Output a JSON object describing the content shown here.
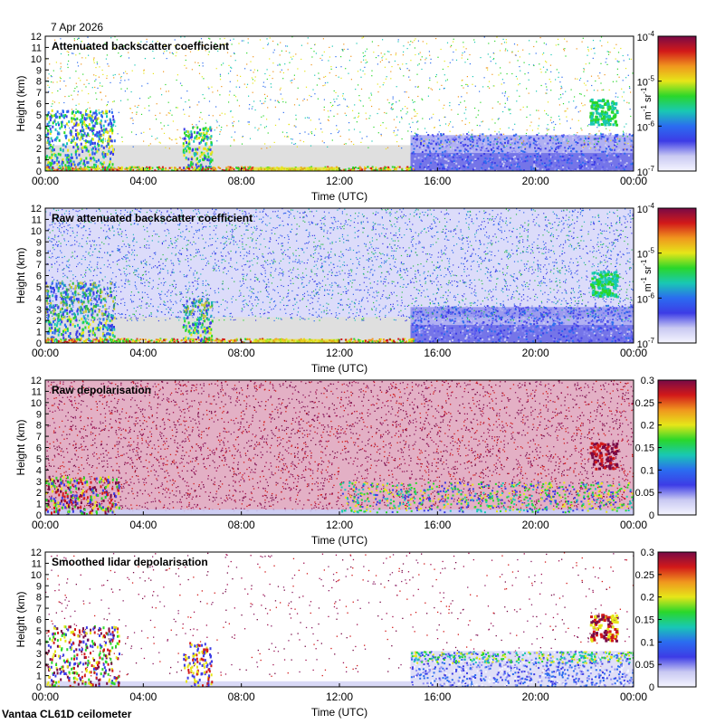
{
  "date": "7 Apr 2026",
  "footer": "Vantaa CL61D ceilometer",
  "colors": {
    "background_color": "#ffffff",
    "clear_air": "#dcdcdc",
    "colormap": [
      "#f5f5ff",
      "#c9c9f2",
      "#3c3ce6",
      "#2b6cf0",
      "#19c8b4",
      "#2ad72a",
      "#e6e619",
      "#f0961e",
      "#d21919",
      "#780a46"
    ]
  },
  "chart_data": [
    {
      "type": "heatmap",
      "title": "Attenuated backscatter coefficient",
      "xlabel": "Time (UTC)",
      "ylabel": "Height (km)",
      "xlim": [
        0,
        24
      ],
      "ylim": [
        0,
        12
      ],
      "x_ticks": [
        0,
        4,
        8,
        12,
        16,
        20,
        24
      ],
      "x_tick_labels": [
        "00:00",
        "04:00",
        "08:00",
        "12:00",
        "16:00",
        "20:00",
        "00:00"
      ],
      "y_ticks": [
        0,
        1,
        2,
        3,
        4,
        5,
        6,
        7,
        8,
        9,
        10,
        11,
        12
      ],
      "y_tick_labels": [
        "0",
        "1",
        "2",
        "3",
        "4",
        "5",
        "6",
        "7",
        "8",
        "9",
        "10",
        "11",
        "12"
      ],
      "colorbar": {
        "scale": "log",
        "range": [
          1e-07,
          0.0001
        ],
        "ticks": [
          1e-07,
          1e-06,
          1e-05,
          0.0001
        ],
        "tick_labels": [
          {
            "base": "10",
            "exp": "-7"
          },
          {
            "base": "10",
            "exp": "-6"
          },
          {
            "base": "10",
            "exp": "-5"
          },
          {
            "base": "10",
            "exp": "-4"
          }
        ],
        "unit": {
          "a": "m",
          "a_exp": "-1",
          "b": " sr",
          "b_exp": "-1"
        }
      },
      "variant": "backscatter"
    },
    {
      "type": "heatmap",
      "title": "Raw attenuated backscatter coefficient",
      "xlabel": "Time (UTC)",
      "ylabel": "Height (km)",
      "xlim": [
        0,
        24
      ],
      "ylim": [
        0,
        12
      ],
      "x_ticks": [
        0,
        4,
        8,
        12,
        16,
        20,
        24
      ],
      "x_tick_labels": [
        "00:00",
        "04:00",
        "08:00",
        "12:00",
        "16:00",
        "20:00",
        "00:00"
      ],
      "y_ticks": [
        0,
        1,
        2,
        3,
        4,
        5,
        6,
        7,
        8,
        9,
        10,
        11,
        12
      ],
      "y_tick_labels": [
        "0",
        "1",
        "2",
        "3",
        "4",
        "5",
        "6",
        "7",
        "8",
        "9",
        "10",
        "11",
        "12"
      ],
      "colorbar": {
        "scale": "log",
        "range": [
          1e-07,
          0.0001
        ],
        "ticks": [
          1e-07,
          1e-06,
          1e-05,
          0.0001
        ],
        "tick_labels": [
          {
            "base": "10",
            "exp": "-7"
          },
          {
            "base": "10",
            "exp": "-6"
          },
          {
            "base": "10",
            "exp": "-5"
          },
          {
            "base": "10",
            "exp": "-4"
          }
        ],
        "unit": {
          "a": "m",
          "a_exp": "-1",
          "b": " sr",
          "b_exp": "-1"
        }
      },
      "variant": "raw_backscatter"
    },
    {
      "type": "heatmap",
      "title": "Raw depolarisation",
      "xlabel": "Time (UTC)",
      "ylabel": "Height (km)",
      "xlim": [
        0,
        24
      ],
      "ylim": [
        0,
        12
      ],
      "x_ticks": [
        0,
        4,
        8,
        12,
        16,
        20,
        24
      ],
      "x_tick_labels": [
        "00:00",
        "04:00",
        "08:00",
        "12:00",
        "16:00",
        "20:00",
        "00:00"
      ],
      "y_ticks": [
        0,
        1,
        2,
        3,
        4,
        5,
        6,
        7,
        8,
        9,
        10,
        11,
        12
      ],
      "y_tick_labels": [
        "0",
        "1",
        "2",
        "3",
        "4",
        "5",
        "6",
        "7",
        "8",
        "9",
        "10",
        "11",
        "12"
      ],
      "colorbar": {
        "scale": "linear",
        "range": [
          0,
          0.3
        ],
        "ticks": [
          0,
          0.05,
          0.1,
          0.15,
          0.2,
          0.25,
          0.3
        ],
        "tick_labels": [
          {
            "base": "0"
          },
          {
            "base": "0.05"
          },
          {
            "base": "0.1"
          },
          {
            "base": "0.15"
          },
          {
            "base": "0.2"
          },
          {
            "base": "0.25"
          },
          {
            "base": "0.3"
          }
        ],
        "unit": null
      },
      "variant": "raw_depol"
    },
    {
      "type": "heatmap",
      "title": "Smoothed lidar depolarisation",
      "xlabel": "Time (UTC)",
      "ylabel": "Height (km)",
      "xlim": [
        0,
        24
      ],
      "ylim": [
        0,
        12
      ],
      "x_ticks": [
        0,
        4,
        8,
        12,
        16,
        20,
        24
      ],
      "x_tick_labels": [
        "00:00",
        "04:00",
        "08:00",
        "12:00",
        "16:00",
        "20:00",
        "00:00"
      ],
      "y_ticks": [
        0,
        1,
        2,
        3,
        4,
        5,
        6,
        7,
        8,
        9,
        10,
        11,
        12
      ],
      "y_tick_labels": [
        "0",
        "1",
        "2",
        "3",
        "4",
        "5",
        "6",
        "7",
        "8",
        "9",
        "10",
        "11",
        "12"
      ],
      "colorbar": {
        "scale": "linear",
        "range": [
          0,
          0.3
        ],
        "ticks": [
          0,
          0.05,
          0.1,
          0.15,
          0.2,
          0.25,
          0.3
        ],
        "tick_labels": [
          {
            "base": "0"
          },
          {
            "base": "0.05"
          },
          {
            "base": "0.1"
          },
          {
            "base": "0.15"
          },
          {
            "base": "0.2"
          },
          {
            "base": "0.25"
          },
          {
            "base": "0.3"
          }
        ],
        "unit": null
      },
      "variant": "smooth_depol"
    }
  ]
}
